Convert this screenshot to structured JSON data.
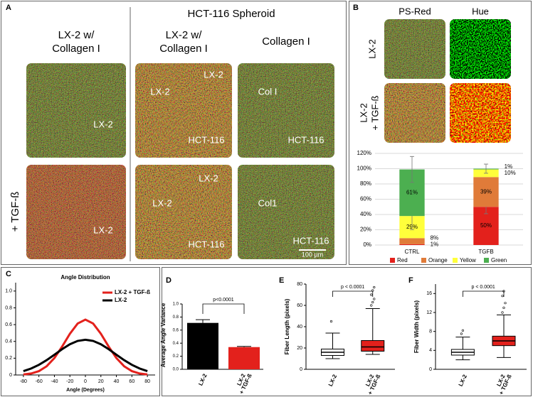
{
  "panel_a": {
    "letter": "A",
    "group_title": "HCT-116 Spheroid",
    "column_titles": [
      [
        "LX-2 w/",
        "Collagen I"
      ],
      [
        "LX-2 w/",
        "Collagen I"
      ],
      [
        "Collagen I"
      ]
    ],
    "row_label": "+ TGF-ß",
    "image_labels": [
      [
        [
          "LX-2"
        ],
        [
          "LX-2",
          "LX-2",
          "HCT-116"
        ],
        [
          "Col I",
          "HCT-116"
        ]
      ],
      [
        [
          "LX-2"
        ],
        [
          "LX-2",
          "LX-2",
          "HCT-116"
        ],
        [
          "Col1",
          "HCT-116"
        ]
      ]
    ],
    "scale_bar": "100 µm"
  },
  "panel_b": {
    "letter": "B",
    "column_titles": [
      "PS-Red",
      "Hue"
    ],
    "row_labels": [
      [
        "LX-2"
      ],
      [
        "LX-2",
        "+ TGF-ß"
      ]
    ]
  },
  "chart_data": [
    {
      "type": "stacked_bar",
      "categories": [
        "CTRL",
        "TGFB"
      ],
      "series": [
        {
          "name": "Red",
          "color": "#e3211c",
          "values": [
            1,
            50
          ],
          "value_labels": [
            "1%",
            "50%"
          ],
          "errors": [
            null,
            9
          ]
        },
        {
          "name": "Orange",
          "color": "#e07b39",
          "values": [
            8,
            39
          ],
          "value_labels": [
            "8%",
            "39%"
          ],
          "errors": [
            null,
            null
          ]
        },
        {
          "name": "Yellow",
          "color": "#ffff3b",
          "values": [
            29,
            10
          ],
          "value_labels": [
            "29%",
            "10%"
          ],
          "errors": [
            18,
            null
          ]
        },
        {
          "name": "Green",
          "color": "#4caf50",
          "values": [
            61,
            1
          ],
          "value_labels": [
            "61%",
            "1%"
          ],
          "errors": [
            17,
            6
          ]
        }
      ],
      "ylim": [
        0,
        120
      ],
      "yticks": [
        {
          "value": 0,
          "label": "0%"
        },
        {
          "value": 20,
          "label": "20%"
        },
        {
          "value": 40,
          "label": "40%"
        },
        {
          "value": 60,
          "label": "60%"
        },
        {
          "value": 80,
          "label": "80%"
        },
        {
          "value": 100,
          "label": "100%"
        },
        {
          "value": 120,
          "label": "120%"
        }
      ],
      "grid": true,
      "legend": "bottom"
    },
    {
      "type": "line",
      "letter": "C",
      "title": "Angle Distribution",
      "x_label": "Angle (Degrees)",
      "x": [
        -80,
        -70,
        -60,
        -50,
        -40,
        -30,
        -20,
        -10,
        0,
        10,
        20,
        30,
        40,
        50,
        60,
        70,
        80
      ],
      "series": [
        {
          "name": "LX-2 + TGF-ß",
          "color": "#e3211c",
          "values": [
            0.006,
            0.018,
            0.046,
            0.104,
            0.202,
            0.339,
            0.491,
            0.613,
            0.66,
            0.613,
            0.491,
            0.339,
            0.202,
            0.104,
            0.046,
            0.018,
            0.006
          ]
        },
        {
          "name": "LX-2",
          "color": "#000000",
          "values": [
            0.046,
            0.077,
            0.121,
            0.177,
            0.241,
            0.308,
            0.366,
            0.406,
            0.42,
            0.406,
            0.366,
            0.308,
            0.241,
            0.177,
            0.121,
            0.077,
            0.046
          ]
        }
      ],
      "xlim": [
        -90,
        90
      ],
      "xticks": [
        -80,
        -60,
        -40,
        -20,
        0,
        20,
        40,
        60,
        80
      ],
      "ylim": [
        0,
        1.1
      ],
      "yticks": [
        0,
        0.2,
        0.4,
        0.6,
        0.8,
        {
          "value": 1,
          "label": "1.0"
        }
      ],
      "legend": "top-right"
    },
    {
      "type": "bar",
      "letter": "D",
      "y_label": "Average Angle Variance",
      "categories": [
        [
          "LX-2"
        ],
        [
          "LX-2",
          "+ TGF-ß"
        ]
      ],
      "values": [
        0.71,
        0.34
      ],
      "errors": [
        0.05,
        0.01
      ],
      "colors": [
        "#000000",
        "#e3211c"
      ],
      "annotation": "p<0.0001",
      "ylim": [
        0,
        1
      ],
      "yticks": [
        {
          "value": 0,
          "label": "0.0"
        },
        0.2,
        0.4,
        0.6,
        0.8,
        {
          "value": 1,
          "label": "1.0"
        }
      ]
    },
    {
      "type": "box",
      "letter": "E",
      "y_label": "Fiber Length (pixels)",
      "categories": [
        [
          "LX-2"
        ],
        [
          "LX-2",
          "+ TGF-ß"
        ]
      ],
      "colors": [
        "#ffffff",
        "#e3211c"
      ],
      "annotation": "p < 0.0001",
      "boxes": [
        {
          "min": 10,
          "q1": 13,
          "median": 16,
          "q3": 19,
          "max": 34,
          "outliers": [
            45
          ]
        },
        {
          "min": 14,
          "q1": 17,
          "median": 21,
          "q3": 27,
          "max": 57,
          "outliers": [
            60,
            63,
            66,
            70,
            74,
            77
          ]
        }
      ],
      "ylim": [
        0,
        80
      ],
      "yticks": [
        0,
        20,
        40,
        60,
        80
      ]
    },
    {
      "type": "box",
      "letter": "F",
      "y_label": "Fiber Width (pixels)",
      "categories": [
        [
          "LX-2"
        ],
        [
          "LX-2",
          "+ TGF-ß"
        ]
      ],
      "colors": [
        "#ffffff",
        "#e3211c"
      ],
      "annotation": "p < 0.0001",
      "boxes": [
        {
          "min": 2,
          "q1": 3,
          "median": 3.6,
          "q3": 4.2,
          "max": 6.8,
          "outliers": [
            7.5,
            8.2
          ]
        },
        {
          "min": 2.5,
          "q1": 5,
          "median": 6,
          "q3": 7,
          "max": 11.5,
          "outliers": [
            12,
            13,
            14,
            15.5,
            16.5
          ]
        }
      ],
      "ylim": [
        0,
        18
      ],
      "yticks": [
        0,
        4,
        8,
        12,
        16
      ]
    }
  ]
}
